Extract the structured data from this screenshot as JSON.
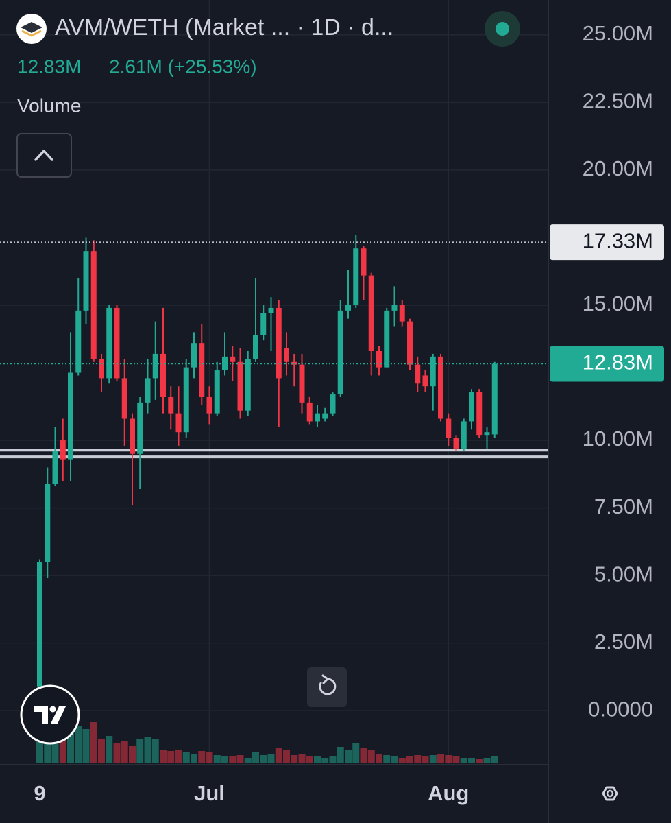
{
  "chart_data": {
    "type": "candlestick",
    "title": "AVM/WETH (Market ... · 1D · d...",
    "last_value": "12.83M",
    "change": "2.61M (+25.53%)",
    "volume_label": "Volume",
    "categories": [
      "9",
      null,
      null,
      null,
      null,
      null,
      null,
      null,
      null,
      null,
      null,
      null,
      null,
      null,
      null,
      null,
      null,
      null,
      null,
      null,
      null,
      null,
      "Jul",
      null,
      null,
      null,
      null,
      null,
      null,
      null,
      null,
      null,
      null,
      null,
      null,
      null,
      null,
      null,
      null,
      null,
      null,
      null,
      null,
      null,
      null,
      null,
      null,
      null,
      null,
      null,
      null,
      null,
      null,
      "Aug",
      null,
      null,
      null,
      null,
      null,
      null
    ],
    "open": [
      900000,
      5500000,
      8400000,
      10000000,
      9300000,
      12500000,
      14800000,
      17000000,
      13000000,
      12300000,
      14900000,
      12300000,
      10800000,
      9500000,
      11400000,
      12300000,
      13200000,
      11600000,
      11000000,
      10300000,
      12700000,
      13600000,
      11600000,
      11000000,
      12600000,
      13100000,
      12900000,
      11100000,
      13000000,
      13900000,
      14700000,
      14900000,
      13400000,
      12900000,
      12800000,
      11400000,
      10700000,
      10800000,
      11000000,
      11700000,
      14800000,
      15000000,
      17100000,
      16100000,
      13300000,
      12700000,
      14800000,
      15000000,
      14400000,
      12800000,
      12400000,
      12000000,
      13100000,
      10800000,
      10100000,
      9700000,
      10700000,
      11800000,
      10200000,
      10220000
    ],
    "high": [
      5600000,
      9000000,
      10500000,
      10800000,
      14000000,
      16000000,
      17500000,
      17400000,
      13200000,
      15000000,
      15000000,
      13000000,
      11000000,
      11600000,
      13000000,
      14400000,
      14900000,
      12000000,
      12000000,
      13000000,
      14000000,
      14300000,
      12000000,
      12900000,
      14000000,
      13500000,
      13400000,
      13300000,
      16000000,
      15000000,
      15300000,
      15200000,
      14000000,
      13200000,
      13200000,
      11600000,
      11300000,
      11200000,
      11800000,
      15200000,
      16300000,
      17600000,
      17200000,
      16200000,
      13500000,
      14900000,
      15700000,
      15200000,
      14500000,
      13100000,
      12600000,
      13200000,
      13200000,
      11000000,
      10200000,
      10800000,
      11900000,
      11900000,
      10500000,
      12900000
    ],
    "low": [
      900000,
      4900000,
      8300000,
      8500000,
      8500000,
      12400000,
      14300000,
      12900000,
      11800000,
      12100000,
      12200000,
      9800000,
      7600000,
      8200000,
      11000000,
      11500000,
      11000000,
      10400000,
      9800000,
      10100000,
      12300000,
      11300000,
      10600000,
      10900000,
      12400000,
      12200000,
      10800000,
      10900000,
      12900000,
      13700000,
      13300000,
      10500000,
      12400000,
      12000000,
      11000000,
      10600000,
      10500000,
      10700000,
      10900000,
      11600000,
      14500000,
      14900000,
      15200000,
      12400000,
      12400000,
      12700000,
      14200000,
      14200000,
      12600000,
      11800000,
      11800000,
      11100000,
      10700000,
      9800000,
      9600000,
      9600000,
      10400000,
      10100000,
      9700000,
      10100000
    ],
    "close": [
      5500000,
      8400000,
      9600000,
      9300000,
      12500000,
      14800000,
      17000000,
      13000000,
      12300000,
      14900000,
      12300000,
      10800000,
      9500000,
      11400000,
      12300000,
      13200000,
      11600000,
      11000000,
      10300000,
      12700000,
      13600000,
      11600000,
      11000000,
      12600000,
      13100000,
      12900000,
      11100000,
      13000000,
      13900000,
      14700000,
      14900000,
      12300000,
      12900000,
      12800000,
      11400000,
      10700000,
      11000000,
      11000000,
      11700000,
      14800000,
      15000000,
      17100000,
      16100000,
      13300000,
      12700000,
      14800000,
      15000000,
      14400000,
      12800000,
      12100000,
      12000000,
      13100000,
      10800000,
      10100000,
      9700000,
      10700000,
      11800000,
      10200000,
      10300000,
      12830000
    ],
    "volume": [
      40,
      45,
      50,
      55,
      58,
      55,
      50,
      60,
      35,
      40,
      30,
      32,
      25,
      35,
      38,
      35,
      20,
      18,
      20,
      16,
      14,
      18,
      16,
      12,
      10,
      10,
      12,
      8,
      16,
      12,
      14,
      22,
      20,
      12,
      14,
      10,
      10,
      8,
      10,
      24,
      20,
      30,
      22,
      20,
      14,
      12,
      10,
      8,
      10,
      12,
      10,
      12,
      14,
      12,
      10,
      8,
      8,
      6,
      8,
      10
    ],
    "up_color": "#22ab94",
    "down_color": "#f23645",
    "ylim": [
      -2000000,
      26290000
    ],
    "yticks": [
      {
        "value": 25000000,
        "label": "25.00M"
      },
      {
        "value": 22500000,
        "label": "22.50M"
      },
      {
        "value": 20000000,
        "label": "20.00M"
      },
      {
        "value": 15000000,
        "label": "15.00M"
      },
      {
        "value": 10000000,
        "label": "10.00M"
      },
      {
        "value": 7500000,
        "label": "7.50M"
      },
      {
        "value": 5000000,
        "label": "5.00M"
      },
      {
        "value": 2500000,
        "label": "2.50M"
      },
      {
        "value": 0,
        "label": "0.0000"
      }
    ],
    "high_line": {
      "value": 17330000,
      "label": "17.33M"
    },
    "last_line": {
      "value": 12830000,
      "label": "12.83M"
    },
    "levels": [
      9640000,
      9390000
    ],
    "grid": true
  }
}
